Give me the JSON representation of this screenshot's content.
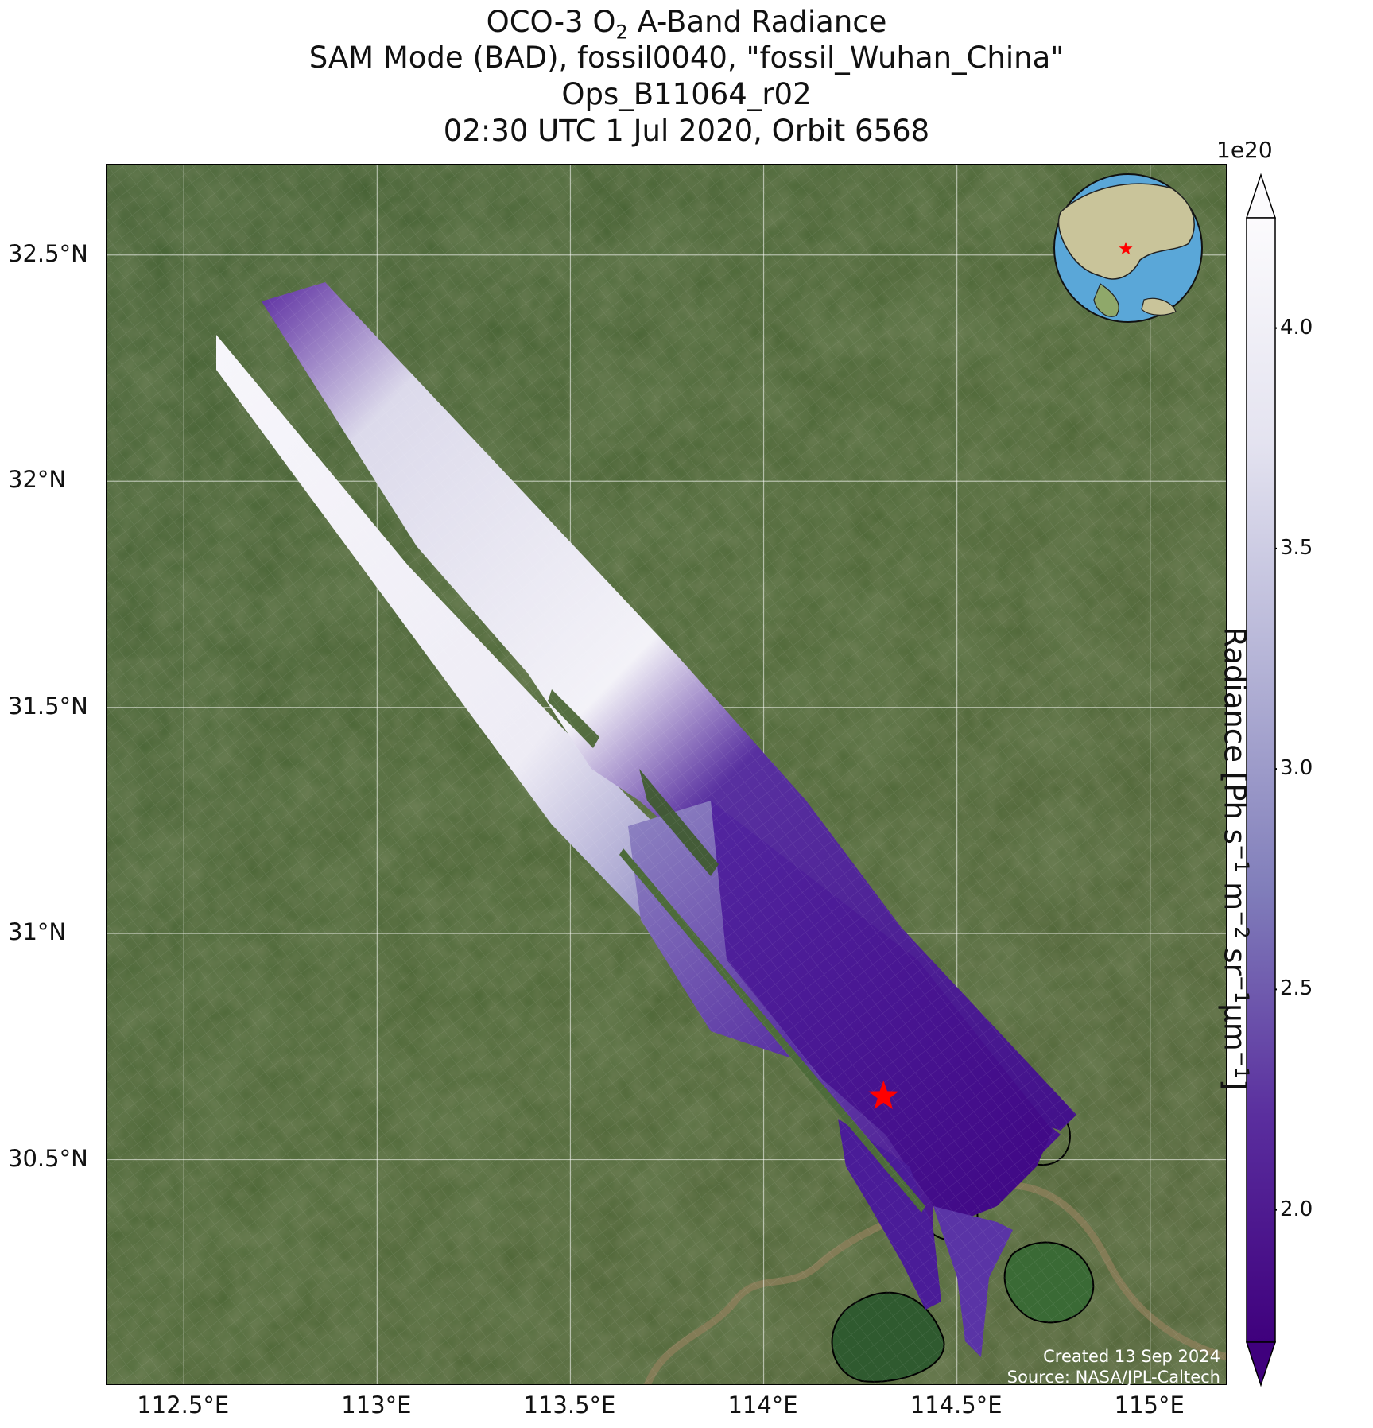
{
  "titles": {
    "line1_pre": "OCO-3 O",
    "line1_sub": "2",
    "line1_post": " A-Band Radiance",
    "line2": "SAM Mode (BAD), fossil0040, \"fossil_Wuhan_China\"",
    "line3": "Ops_B11064_r02",
    "line4": "02:30 UTC 1 Jul 2020, Orbit 6568"
  },
  "map": {
    "lon_range": [
      112.3,
      115.2
    ],
    "lat_range": [
      30.0,
      32.7
    ],
    "lat_ticks": [
      {
        "value": 32.5,
        "label": "32.5°N"
      },
      {
        "value": 32.0,
        "label": "32°N"
      },
      {
        "value": 31.5,
        "label": "31.5°N"
      },
      {
        "value": 31.0,
        "label": "31°N"
      },
      {
        "value": 30.5,
        "label": "30.5°N"
      }
    ],
    "lon_ticks": [
      {
        "value": 112.5,
        "label": "112.5°E"
      },
      {
        "value": 113.0,
        "label": "113°E"
      },
      {
        "value": 113.5,
        "label": "113.5°E"
      },
      {
        "value": 114.0,
        "label": "114°E"
      },
      {
        "value": 114.5,
        "label": "114.5°E"
      },
      {
        "value": 115.0,
        "label": "115°E"
      }
    ],
    "target": {
      "name": "fossil_Wuhan_China",
      "lon": 114.31,
      "lat": 30.64
    },
    "basemap": "satellite-imagery",
    "colors": {
      "land": "#3d5a2a",
      "swath_low": "#3f007d",
      "swath_high": "#fcfbfd",
      "target": "#ff0000"
    }
  },
  "colorbar": {
    "exponent": "1e20",
    "range": [
      1.7,
      4.25
    ],
    "ticks": [
      {
        "value": 4.0,
        "label": "4.0"
      },
      {
        "value": 3.5,
        "label": "3.5"
      },
      {
        "value": 3.0,
        "label": "3.0"
      },
      {
        "value": 2.5,
        "label": "2.5"
      },
      {
        "value": 2.0,
        "label": "2.0"
      }
    ],
    "label_text": "Radiance [Ph s",
    "label_sup1": "−1",
    "label_mid1": " m",
    "label_sup2": "−2",
    "label_mid2": " sr",
    "label_sup3": "−1",
    "label_mid3": "μm",
    "label_sup4": "−1",
    "label_end": "]",
    "colormap": "Purples_r",
    "extend": "both"
  },
  "credits": {
    "created": "Created 13 Sep 2024",
    "source": "Source: NASA/JPL-Caltech"
  }
}
